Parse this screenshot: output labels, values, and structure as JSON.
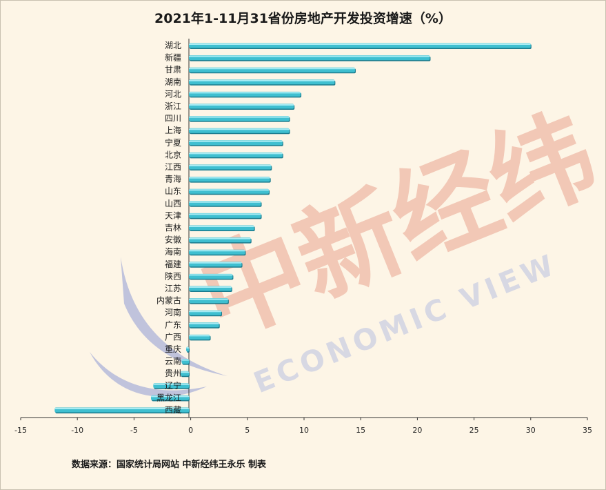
{
  "title": "2021年1-11月31省份房地产开发投资增速（%）",
  "source": "数据来源：国家统计局网站  中新经纬王永乐 制表",
  "watermark": {
    "cn": "中新经纬",
    "en": "ECONOMIC VIEW"
  },
  "colors": {
    "bar_fill": "#3fbfd0",
    "bar_highlight": "#a8ecf4",
    "bar_shadow": "#1a7a8c",
    "axis": "#333333",
    "background": "#fdf5e6"
  },
  "chart_data": {
    "type": "bar",
    "orientation": "horizontal",
    "categories": [
      "湖北",
      "新疆",
      "甘肃",
      "湖南",
      "河北",
      "浙江",
      "四川",
      "上海",
      "宁夏",
      "北京",
      "江西",
      "青海",
      "山东",
      "山西",
      "天津",
      "吉林",
      "安徽",
      "海南",
      "福建",
      "陕西",
      "江苏",
      "内蒙古",
      "河南",
      "广东",
      "广西",
      "重庆",
      "云南",
      "贵州",
      "辽宁",
      "黑龙江",
      "西藏"
    ],
    "values": [
      30.0,
      21.1,
      14.5,
      12.7,
      9.7,
      9.1,
      8.7,
      8.7,
      8.1,
      8.1,
      7.1,
      7.0,
      6.9,
      6.2,
      6.2,
      5.6,
      5.3,
      4.8,
      4.5,
      3.7,
      3.6,
      3.3,
      2.7,
      2.5,
      1.7,
      -0.4,
      -0.8,
      -0.9,
      -3.3,
      -3.5,
      -12.0
    ],
    "xlim": [
      -15,
      35
    ],
    "xticks": [
      "-15",
      "-10",
      "-5",
      "0",
      "5",
      "10",
      "15",
      "20",
      "25",
      "30",
      "35"
    ],
    "grid": false,
    "legend": "none"
  }
}
